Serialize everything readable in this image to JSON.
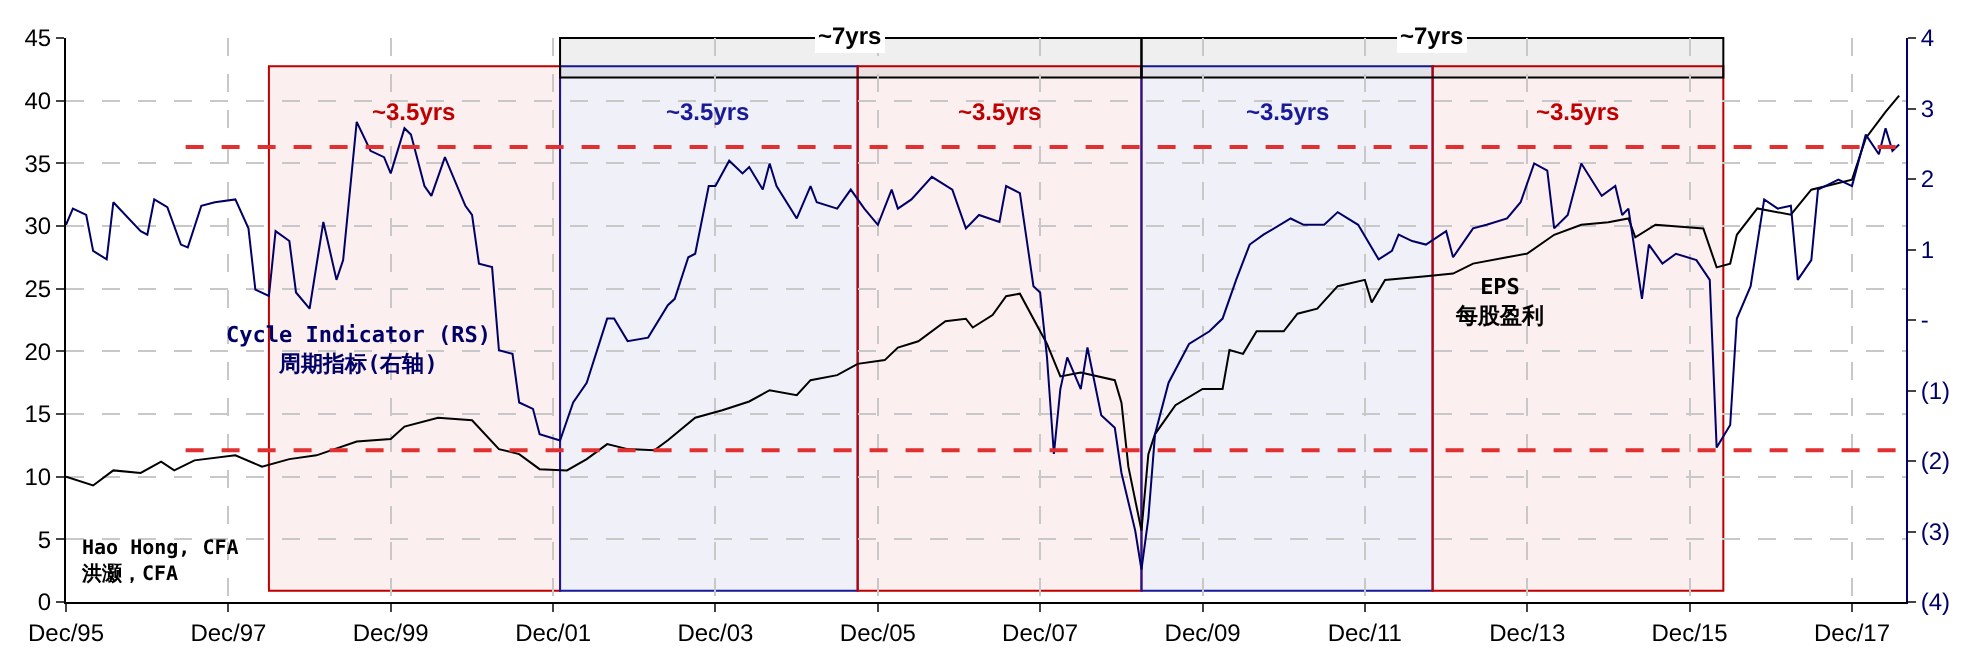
{
  "chart_data": {
    "type": "line",
    "xlim": [
      "1995-12",
      "2018-08"
    ],
    "xticks": [
      {
        "value": "1995-12",
        "label": "Dec/95"
      },
      {
        "value": "1997-12",
        "label": "Dec/97"
      },
      {
        "value": "1999-12",
        "label": "Dec/99"
      },
      {
        "value": "2001-12",
        "label": "Dec/01"
      },
      {
        "value": "2003-12",
        "label": "Dec/03"
      },
      {
        "value": "2005-12",
        "label": "Dec/05"
      },
      {
        "value": "2007-12",
        "label": "Dec/07"
      },
      {
        "value": "2009-12",
        "label": "Dec/09"
      },
      {
        "value": "2011-12",
        "label": "Dec/11"
      },
      {
        "value": "2013-12",
        "label": "Dec/13"
      },
      {
        "value": "2015-12",
        "label": "Dec/15"
      },
      {
        "value": "2017-12",
        "label": "Dec/17"
      }
    ],
    "ylim": [
      0,
      45
    ],
    "yticks": [
      0,
      5,
      10,
      15,
      20,
      25,
      30,
      35,
      40,
      45
    ],
    "y2lim": [
      -4,
      4
    ],
    "y2ticks": [
      {
        "value": -4,
        "label": "(4)"
      },
      {
        "value": -3,
        "label": "(3)"
      },
      {
        "value": -2,
        "label": "(2)"
      },
      {
        "value": -1,
        "label": "(1)"
      },
      {
        "value": 0,
        "label": "-"
      },
      1,
      2,
      3,
      4
    ],
    "grid": true,
    "legend": false,
    "line_style": "solid",
    "marker": "none",
    "series": [
      {
        "name": "EPS\n每股盈利",
        "color": "#000000",
        "x": [
          "1995-12",
          "1996-04",
          "1996-07",
          "1996-11",
          "1997-02",
          "1997-04",
          "1997-07",
          "1998-01",
          "1998-05",
          "1998-09",
          "1999-01",
          "1999-07",
          "1999-12",
          "2000-02",
          "2000-07",
          "2000-12",
          "2001-04",
          "2001-07",
          "2001-10",
          "2002-02",
          "2002-05",
          "2002-08",
          "2002-11",
          "2003-03",
          "2003-05",
          "2003-09",
          "2004-01",
          "2004-05",
          "2004-08",
          "2004-12",
          "2005-02",
          "2005-06",
          "2005-09",
          "2006-01",
          "2006-03",
          "2006-06",
          "2006-10",
          "2007-01",
          "2007-02",
          "2007-05",
          "2007-07",
          "2007-09",
          "2007-12",
          "2008-01",
          "2008-03",
          "2008-06",
          "2008-11",
          "2008-12",
          "2009-01",
          "2009-03",
          "2009-04",
          "2009-05",
          "2009-08",
          "2009-12",
          "2010-03",
          "2010-04",
          "2010-06",
          "2010-08",
          "2010-12",
          "2011-02",
          "2011-05",
          "2011-08",
          "2011-12",
          "2012-01",
          "2012-03",
          "2012-09",
          "2013-01",
          "2013-04",
          "2013-09",
          "2013-12",
          "2014-04",
          "2014-08",
          "2014-12",
          "2015-03",
          "2015-04",
          "2015-07",
          "2016-02",
          "2016-04",
          "2016-06",
          "2016-07",
          "2016-10",
          "2017-03",
          "2017-06",
          "2017-12",
          "2018-02",
          "2018-05",
          "2018-07"
        ],
        "values": [
          10.0,
          9.3,
          10.5,
          10.3,
          11.2,
          10.5,
          11.3,
          11.7,
          10.8,
          11.4,
          11.7,
          12.8,
          13.0,
          14.0,
          14.7,
          14.5,
          12.2,
          11.8,
          10.6,
          10.5,
          11.4,
          12.6,
          12.2,
          12.1,
          12.9,
          14.7,
          15.3,
          16.0,
          16.9,
          16.5,
          17.7,
          18.1,
          19.0,
          19.3,
          20.3,
          20.8,
          22.4,
          22.6,
          21.9,
          22.9,
          24.4,
          24.6,
          21.6,
          20.6,
          18.0,
          18.3,
          17.7,
          15.9,
          10.8,
          5.7,
          11.8,
          13.4,
          15.7,
          17.0,
          17.0,
          20.1,
          19.8,
          21.6,
          21.6,
          23.0,
          23.4,
          25.2,
          25.7,
          23.9,
          25.7,
          26.0,
          26.2,
          27.0,
          27.5,
          27.8,
          29.3,
          30.1,
          30.3,
          30.6,
          29.1,
          30.1,
          29.8,
          26.7,
          27.0,
          29.3,
          31.4,
          30.9,
          32.9,
          33.7,
          37.0,
          39.1,
          40.4
        ]
      },
      {
        "name": "Cycle Indicator (RS)\n周期指标(右轴)",
        "color": "#000066",
        "axis": "y2",
        "x": [
          "1995-12",
          "1996-01",
          "1996-03",
          "1996-04",
          "1996-06",
          "1996-07",
          "1996-11",
          "1996-12",
          "1997-01",
          "1997-03",
          "1997-05",
          "1997-06",
          "1997-08",
          "1997-10",
          "1998-01",
          "1998-03",
          "1998-04",
          "1998-06",
          "1998-07",
          "1998-09",
          "1998-10",
          "1998-12",
          "1999-02",
          "1999-04",
          "1999-05",
          "1999-07",
          "1999-09",
          "1999-11",
          "1999-12",
          "2000-02",
          "2000-03",
          "2000-05",
          "2000-06",
          "2000-08",
          "2000-11",
          "2000-12",
          "2001-01",
          "2001-03",
          "2001-04",
          "2001-06",
          "2001-07",
          "2001-09",
          "2001-10",
          "2002-01",
          "2002-03",
          "2002-05",
          "2002-08",
          "2002-09",
          "2002-11",
          "2003-02",
          "2003-05",
          "2003-06",
          "2003-08",
          "2003-09",
          "2003-11",
          "2003-12",
          "2004-02",
          "2004-04",
          "2004-05",
          "2004-07",
          "2004-08",
          "2004-09",
          "2004-12",
          "2005-02",
          "2005-03",
          "2005-06",
          "2005-08",
          "2005-10",
          "2005-12",
          "2006-02",
          "2006-03",
          "2006-05",
          "2006-08",
          "2006-11",
          "2007-01",
          "2007-03",
          "2007-06",
          "2007-07",
          "2007-09",
          "2007-11",
          "2007-12",
          "2008-01",
          "2008-02",
          "2008-03",
          "2008-04",
          "2008-06",
          "2008-07",
          "2008-09",
          "2008-11",
          "2008-12",
          "2009-02",
          "2009-03",
          "2009-04",
          "2009-05",
          "2009-07",
          "2009-10",
          "2010-01",
          "2010-03",
          "2010-05",
          "2010-07",
          "2010-09",
          "2011-01",
          "2011-03",
          "2011-06",
          "2011-08",
          "2011-11",
          "2012-02",
          "2012-04",
          "2012-05",
          "2012-07",
          "2012-09",
          "2012-12",
          "2013-01",
          "2013-04",
          "2013-06",
          "2013-09",
          "2013-11",
          "2014-01",
          "2014-03",
          "2014-04",
          "2014-06",
          "2014-08",
          "2014-11",
          "2015-01",
          "2015-02",
          "2015-03",
          "2015-05",
          "2015-06",
          "2015-08",
          "2015-10",
          "2016-01",
          "2016-03",
          "2016-04",
          "2016-06",
          "2016-07",
          "2016-09",
          "2016-11",
          "2017-01",
          "2017-03",
          "2017-04",
          "2017-06",
          "2017-07",
          "2017-10",
          "2017-12",
          "2018-02",
          "2018-04",
          "2018-05",
          "2018-06",
          "2018-07"
        ],
        "values": [
          1.35,
          1.58,
          1.49,
          0.98,
          0.86,
          1.67,
          1.26,
          1.21,
          1.71,
          1.6,
          1.07,
          1.03,
          1.62,
          1.67,
          1.71,
          1.3,
          0.43,
          0.34,
          1.26,
          1.12,
          0.39,
          0.16,
          1.39,
          0.57,
          0.85,
          2.81,
          2.4,
          2.31,
          2.08,
          2.72,
          2.63,
          1.9,
          1.76,
          2.31,
          1.62,
          1.49,
          0.8,
          0.75,
          -0.43,
          -0.48,
          -1.17,
          -1.26,
          -1.62,
          -1.71,
          -1.17,
          -0.89,
          0.02,
          0.02,
          -0.3,
          -0.25,
          0.21,
          0.3,
          0.89,
          0.94,
          1.9,
          1.9,
          2.26,
          2.08,
          2.17,
          1.85,
          2.22,
          1.9,
          1.44,
          1.9,
          1.67,
          1.58,
          1.85,
          1.58,
          1.35,
          1.85,
          1.58,
          1.71,
          2.03,
          1.85,
          1.3,
          1.49,
          1.39,
          1.9,
          1.8,
          0.48,
          0.39,
          -0.53,
          -1.9,
          -0.98,
          -0.53,
          -0.98,
          -0.39,
          -1.35,
          -1.53,
          -2.17,
          -2.99,
          -3.54,
          -2.81,
          -1.62,
          -0.89,
          -0.34,
          -0.16,
          0.02,
          0.57,
          1.07,
          1.21,
          1.44,
          1.35,
          1.35,
          1.53,
          1.35,
          0.86,
          0.98,
          1.21,
          1.12,
          1.07,
          1.26,
          0.89,
          1.3,
          1.35,
          1.44,
          1.67,
          2.22,
          2.12,
          1.3,
          1.49,
          2.22,
          1.76,
          1.9,
          1.49,
          1.58,
          0.3,
          1.07,
          0.8,
          0.94,
          0.85,
          0.57,
          -1.81,
          -1.49,
          0.02,
          0.48,
          1.71,
          1.58,
          1.62,
          0.57,
          0.85,
          1.85,
          1.99,
          1.9,
          2.63,
          2.35,
          2.72,
          2.4,
          2.49
        ]
      }
    ],
    "ref_lines": [
      {
        "axis": "y",
        "value": 36.3,
        "color": "#e03030",
        "line_style": "dashed"
      },
      {
        "axis": "y",
        "value": 12.1,
        "color": "#e03030",
        "line_style": "dashed"
      }
    ],
    "bands": [
      {
        "axis": "x",
        "from": "1998-06",
        "to": "2002-01",
        "label": "~3.5yrs",
        "color": "#c00000"
      },
      {
        "axis": "x",
        "from": "2002-01",
        "to": "2005-09",
        "label": "~3.5yrs",
        "color": "#1a1a99"
      },
      {
        "axis": "x",
        "from": "2005-09",
        "to": "2009-03",
        "label": "~3.5yrs",
        "color": "#c00000"
      },
      {
        "axis": "x",
        "from": "2009-03",
        "to": "2012-10",
        "label": "~3.5yrs",
        "color": "#1a1a99"
      },
      {
        "axis": "x",
        "from": "2012-10",
        "to": "2016-05",
        "label": "~3.5yrs",
        "color": "#c00000"
      },
      {
        "axis": "x",
        "from": "2002-01",
        "to": "2009-03",
        "label": "~7yrs",
        "color": "#000000"
      },
      {
        "axis": "x",
        "from": "2009-03",
        "to": "2016-05",
        "label": "~7yrs",
        "color": "#000000"
      }
    ],
    "annotations": [
      "Hao Hong, CFA\n洪灏，CFA"
    ]
  }
}
